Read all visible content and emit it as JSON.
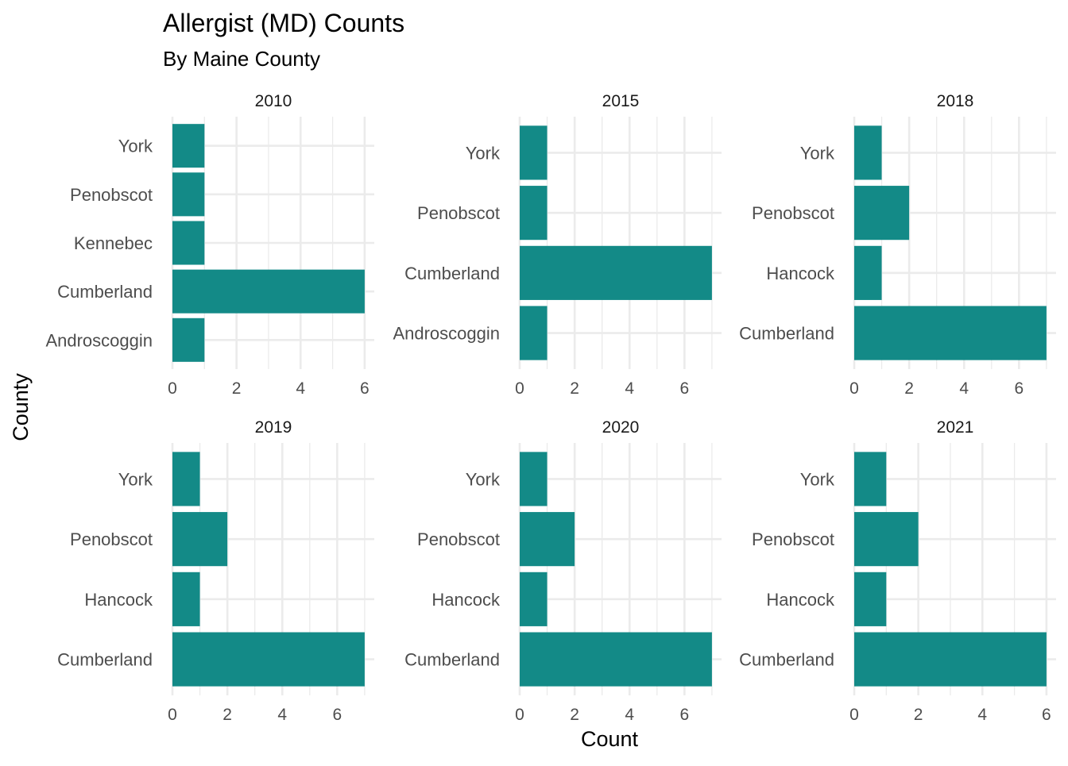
{
  "chart_data": {
    "type": "bar",
    "orientation": "horizontal",
    "title": "Allergist (MD) Counts",
    "subtitle": "By Maine County",
    "xlabel": "Count",
    "ylabel": "County",
    "bar_color": "#138a87",
    "grid": true,
    "facets": [
      {
        "label": "2010",
        "categories": [
          "Androscoggin",
          "Cumberland",
          "Kennebec",
          "Penobscot",
          "York"
        ],
        "values": [
          1,
          6,
          1,
          1,
          1
        ],
        "xlim": [
          0,
          6.3
        ],
        "xticks": [
          "0",
          "2",
          "4",
          "6"
        ]
      },
      {
        "label": "2015",
        "categories": [
          "Androscoggin",
          "Cumberland",
          "Penobscot",
          "York"
        ],
        "values": [
          1,
          7,
          1,
          1
        ],
        "xlim": [
          0,
          7.35
        ],
        "xticks": [
          "0",
          "2",
          "4",
          "6"
        ]
      },
      {
        "label": "2018",
        "categories": [
          "Cumberland",
          "Hancock",
          "Penobscot",
          "York"
        ],
        "values": [
          7,
          1,
          2,
          1
        ],
        "xlim": [
          0,
          7.35
        ],
        "xticks": [
          "0",
          "2",
          "4",
          "6"
        ]
      },
      {
        "label": "2019",
        "categories": [
          "Cumberland",
          "Hancock",
          "Penobscot",
          "York"
        ],
        "values": [
          7,
          1,
          2,
          1
        ],
        "xlim": [
          0,
          7.35
        ],
        "xticks": [
          "0",
          "2",
          "4",
          "6"
        ]
      },
      {
        "label": "2020",
        "categories": [
          "Cumberland",
          "Hancock",
          "Penobscot",
          "York"
        ],
        "values": [
          7,
          1,
          2,
          1
        ],
        "xlim": [
          0,
          7.35
        ],
        "xticks": [
          "0",
          "2",
          "4",
          "6"
        ]
      },
      {
        "label": "2021",
        "categories": [
          "Cumberland",
          "Hancock",
          "Penobscot",
          "York"
        ],
        "values": [
          6,
          1,
          2,
          1
        ],
        "xlim": [
          0,
          6.3
        ],
        "xticks": [
          "0",
          "2",
          "4",
          "6"
        ]
      }
    ]
  }
}
